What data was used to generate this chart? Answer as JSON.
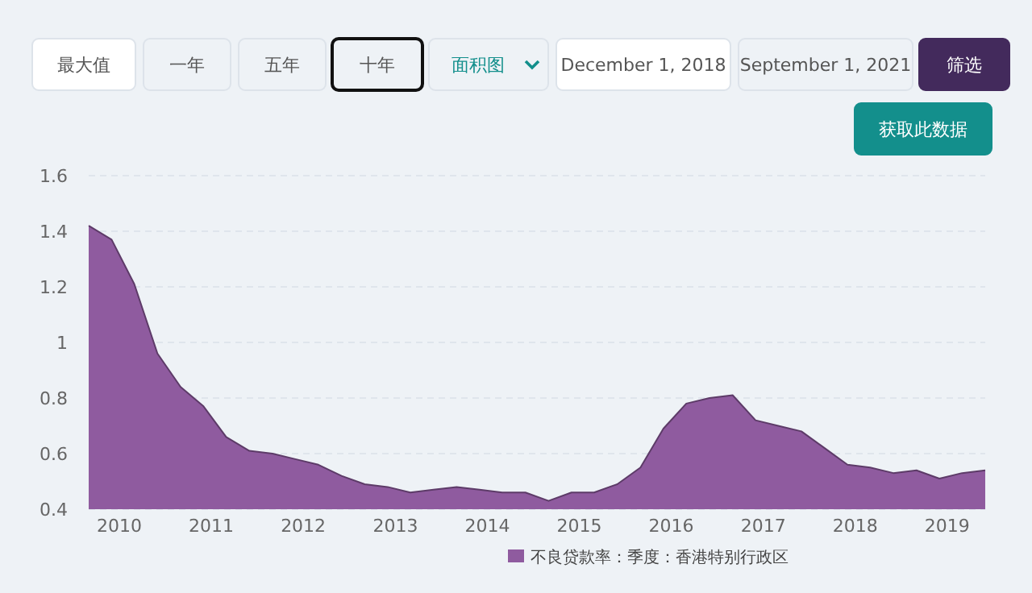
{
  "chart_data": {
    "type": "area",
    "annotations": [
      "最大值",
      "一年",
      "五年",
      "十年",
      "面积图",
      "December 1, 2018",
      "September 1, 2021",
      "筛选",
      "获取此数据"
    ],
    "x": [
      "2009-09",
      "2009-12",
      "2010-03",
      "2010-06",
      "2010-09",
      "2010-12",
      "2011-03",
      "2011-06",
      "2011-09",
      "2011-12",
      "2012-03",
      "2012-06",
      "2012-09",
      "2012-12",
      "2013-03",
      "2013-06",
      "2013-09",
      "2013-12",
      "2014-03",
      "2014-06",
      "2014-09",
      "2014-12",
      "2015-03",
      "2015-06",
      "2015-09",
      "2015-12",
      "2016-03",
      "2016-06",
      "2016-09",
      "2016-12",
      "2017-03",
      "2017-06",
      "2017-09",
      "2017-12",
      "2018-03",
      "2018-06",
      "2018-09",
      "2018-12",
      "2019-03",
      "2019-06"
    ],
    "series": [
      {
        "name": "不良贷款率：季度：香港特别行政区",
        "color": "#8f5b9f",
        "values": [
          1.42,
          1.37,
          1.21,
          0.96,
          0.84,
          0.77,
          0.66,
          0.61,
          0.6,
          0.58,
          0.56,
          0.52,
          0.49,
          0.48,
          0.46,
          0.47,
          0.48,
          0.47,
          0.46,
          0.46,
          0.43,
          0.46,
          0.46,
          0.49,
          0.55,
          0.69,
          0.78,
          0.8,
          0.81,
          0.72,
          0.7,
          0.68,
          0.62,
          0.56,
          0.55,
          0.53,
          0.54,
          0.51,
          0.53,
          0.54
        ]
      }
    ],
    "xlim": [
      "2009-09",
      "2019-06"
    ],
    "xticks": [
      {
        "value": "2010",
        "label": "2010"
      },
      {
        "value": "2011",
        "label": "2011"
      },
      {
        "value": "2012",
        "label": "2012"
      },
      {
        "value": "2013",
        "label": "2013"
      },
      {
        "value": "2014",
        "label": "2014"
      },
      {
        "value": "2015",
        "label": "2015"
      },
      {
        "value": "2016",
        "label": "2016"
      },
      {
        "value": "2017",
        "label": "2017"
      },
      {
        "value": "2018",
        "label": "2018"
      },
      {
        "value": "2019",
        "label": "2019"
      }
    ],
    "ylim": [
      0.4,
      1.6
    ],
    "yticks": [
      0.4,
      0.6,
      0.8,
      {
        "value": 1,
        "label": "1"
      },
      1.2,
      1.4,
      1.6
    ],
    "grid": "y",
    "legend": "bottom"
  }
}
